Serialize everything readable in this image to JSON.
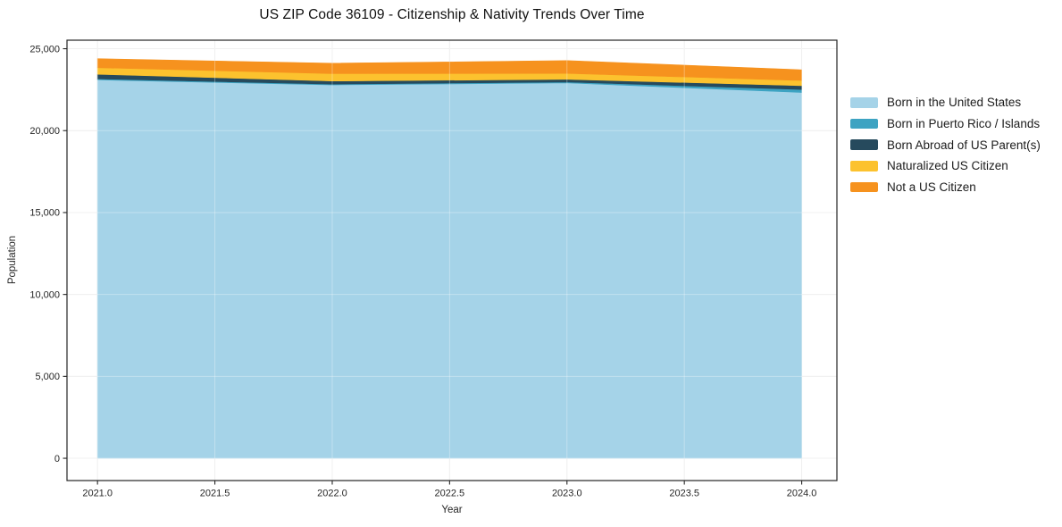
{
  "chart_data": {
    "type": "area",
    "stacked": true,
    "title": "US ZIP Code 36109 - Citizenship & Nativity Trends Over Time",
    "xlabel": "Year",
    "ylabel": "Population",
    "x": [
      2021,
      2022,
      2023,
      2024
    ],
    "series": [
      {
        "name": "Born in the United States",
        "color": "#a5d3e8",
        "values": [
          23100,
          22790,
          22910,
          22330
        ]
      },
      {
        "name": "Born in Puerto Rico / Islands",
        "color": "#3da3c2",
        "values": [
          60,
          50,
          55,
          180
        ]
      },
      {
        "name": "Born Abroad of US Parent(s)",
        "color": "#264a5d",
        "values": [
          280,
          185,
          165,
          235
        ]
      },
      {
        "name": "Naturalized US Citizen",
        "color": "#fcc22e",
        "values": [
          400,
          455,
          365,
          315
        ]
      },
      {
        "name": "Not a US Citizen",
        "color": "#f6921e",
        "values": [
          550,
          635,
          780,
          655
        ]
      }
    ],
    "totals": [
      24390,
      24115,
      24275,
      23715
    ],
    "x_ticks": {
      "values": [
        2021.0,
        2021.5,
        2022.0,
        2022.5,
        2023.0,
        2023.5,
        2024.0
      ],
      "labels": [
        "2021.0",
        "2021.5",
        "2022.0",
        "2022.5",
        "2023.0",
        "2023.5",
        "2024.0"
      ]
    },
    "y_ticks": {
      "values": [
        0,
        5000,
        10000,
        15000,
        20000,
        25000
      ],
      "labels": [
        "0",
        "5,000",
        "10,000",
        "15,000",
        "20,000",
        "25,000"
      ]
    },
    "xlim": [
      2020.87,
      2024.15
    ],
    "ylim": [
      -1360,
      25520
    ],
    "grid": true,
    "legend_position": "right-top",
    "colors": {
      "grid": "#e9e9e9",
      "grid_over_fill": "rgba(255,255,255,0.32)",
      "spine": "#262626",
      "background": "#ffffff"
    }
  }
}
